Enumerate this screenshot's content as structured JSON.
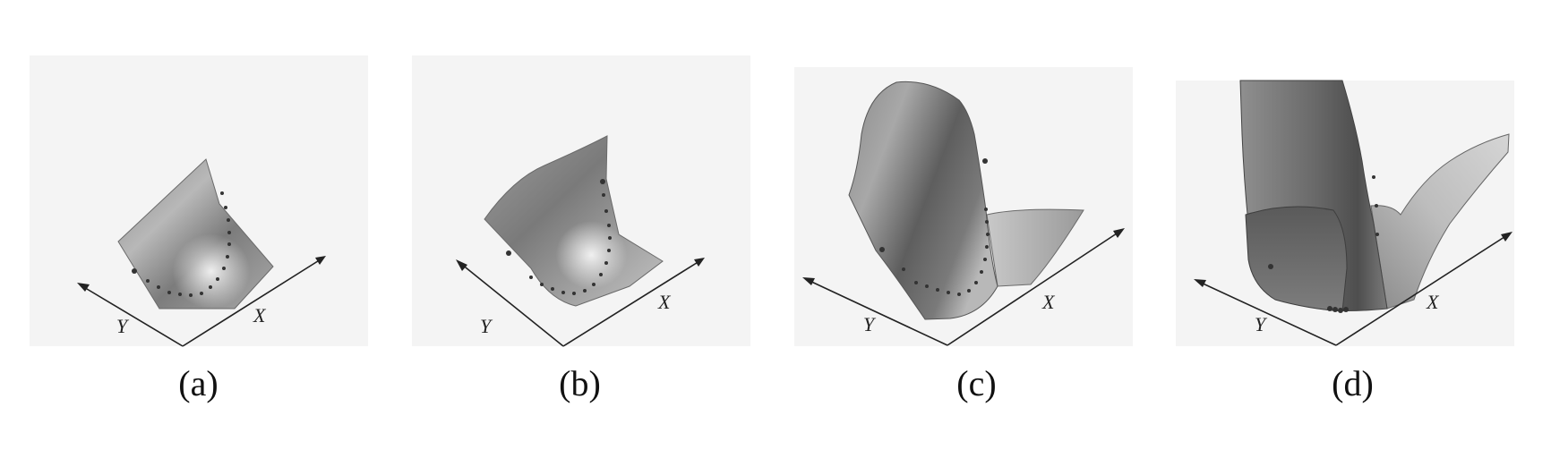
{
  "panels": [
    {
      "caption": "(a)",
      "x_axis": "X",
      "y_axis": "Y"
    },
    {
      "caption": "(b)",
      "x_axis": "X",
      "y_axis": "Y"
    },
    {
      "caption": "(c)",
      "x_axis": "X",
      "y_axis": "Y"
    },
    {
      "caption": "(d)",
      "x_axis": "X",
      "y_axis": "Y"
    }
  ]
}
